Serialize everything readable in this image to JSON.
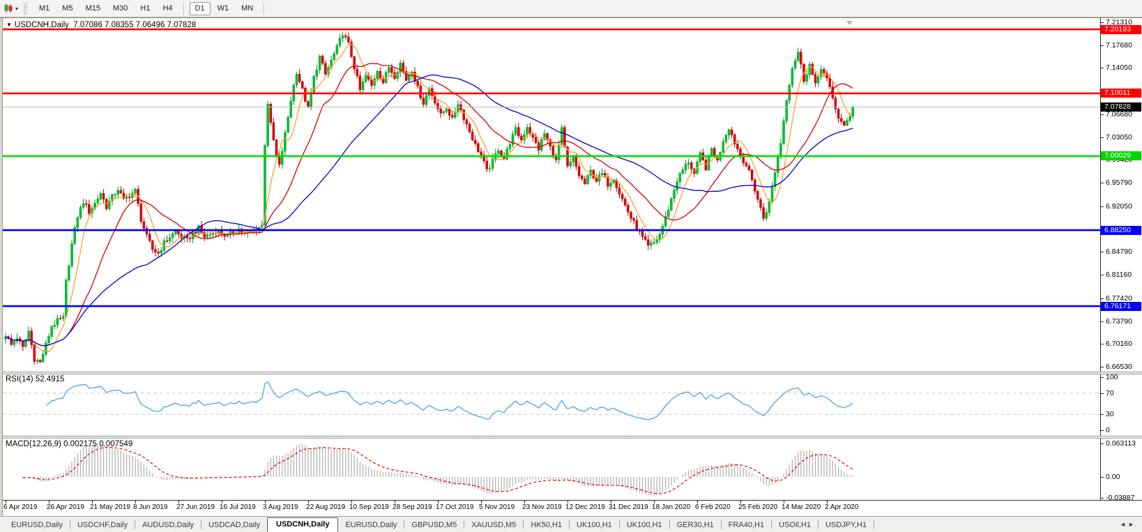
{
  "toolbar": {
    "timeframes": [
      "M1",
      "M5",
      "M15",
      "M30",
      "H1",
      "H4",
      "D1",
      "W1",
      "MN"
    ],
    "active_timeframe": "D1",
    "dropdown_icon": "▾"
  },
  "chart_header": {
    "collapse_icon": "▼",
    "symbol": "USDCNH,Daily",
    "ohlc": "7.07086 7.08355 7.06496 7.07828"
  },
  "price_axis": {
    "ticks": [
      "7.21310",
      "7.17680",
      "7.14050",
      "7.06680",
      "7.03050",
      "6.99420",
      "6.95790",
      "6.92050",
      "6.84790",
      "6.81160",
      "6.77420",
      "6.73790",
      "6.70160",
      "6.66530"
    ],
    "tags": [
      {
        "value": "7.20193",
        "bg": "#ff0000",
        "fg": "#ffffff"
      },
      {
        "value": "7.10011",
        "bg": "#ff0000",
        "fg": "#ffffff"
      },
      {
        "value": "7.07828",
        "bg": "#000000",
        "fg": "#ffffff"
      },
      {
        "value": "7.00029",
        "bg": "#00d500",
        "fg": "#ffffff"
      },
      {
        "value": "6.88250",
        "bg": "#0000ff",
        "fg": "#ffffff"
      },
      {
        "value": "6.76171",
        "bg": "#0000ff",
        "fg": "#ffffff"
      }
    ]
  },
  "rsi": {
    "label": "RSI(14) 52.4915",
    "period": 14,
    "value": "52.4915",
    "ticks": [
      "100",
      "70",
      "30",
      "0"
    ],
    "levels": [
      70,
      30
    ],
    "range": [
      0,
      100
    ],
    "line_color": "#3e9fdf"
  },
  "macd": {
    "label": "MACD(12,26,9) 0.002175 0.007549",
    "fast": 12,
    "slow": 26,
    "signal": 9,
    "values": "0.002175 0.007549",
    "ticks": [
      "0.063113",
      "0.00",
      "-0.03887"
    ],
    "scale_max": 0.063113,
    "scale_min": -0.03887,
    "histogram_color": "#b4b4b4",
    "signal_color": "#e00000"
  },
  "date_axis": {
    "labels": [
      "6 Apr 2019",
      "26 Apr 2019",
      "21 May 2019",
      "8 Jun 2019",
      "27 Jun 2019",
      "16 Jul 2019",
      "3 Aug 2019",
      "22 Aug 2019",
      "10 Sep 2019",
      "28 Sep 2019",
      "17 Oct 2019",
      "5 Nov 2019",
      "23 Nov 2019",
      "12 Dec 2019",
      "31 Dec 2019",
      "18 Jan 2020",
      "6 Feb 2020",
      "25 Feb 2020",
      "14 Mar 2020",
      "2 Apr 2020"
    ],
    "bars_per_label": 15
  },
  "tab_bar": {
    "left_arrow": "◄",
    "right_arrow": "►",
    "tabs": [
      {
        "label": "EURUSD,Daily",
        "active": false
      },
      {
        "label": "USDCHF,Daily",
        "active": false
      },
      {
        "label": "AUDUSD,Daily",
        "active": false
      },
      {
        "label": "USDCAD,Daily",
        "active": false
      },
      {
        "label": "USDCNH,Daily",
        "active": true
      },
      {
        "label": "EURUSD,Daily",
        "active": false
      },
      {
        "label": "GBPUSD,M5",
        "active": false
      },
      {
        "label": "XAUUSD,M5",
        "active": false
      },
      {
        "label": "HK50,H1",
        "active": false
      },
      {
        "label": "UK100,H1",
        "active": false
      },
      {
        "label": "UK100,H1",
        "active": false
      },
      {
        "label": "GER30,H1",
        "active": false
      },
      {
        "label": "FRA40,H1",
        "active": false
      },
      {
        "label": "USOil,H1",
        "active": false
      },
      {
        "label": "USDJPY,H1",
        "active": false
      }
    ]
  },
  "chart_data": {
    "type": "candlestick",
    "symbol": "USDCNH",
    "timeframe": "Daily",
    "open": "7.07086",
    "high": "7.08355",
    "low": "7.06496",
    "close": "7.07828",
    "y_axis": {
      "max": 7.2131,
      "min": 6.6653
    },
    "bar_count": 295,
    "noise": 0.009,
    "close_waypoints": [
      [
        0,
        6.716
      ],
      [
        2,
        6.7
      ],
      [
        4,
        6.712
      ],
      [
        6,
        6.695
      ],
      [
        8,
        6.722
      ],
      [
        10,
        6.678
      ],
      [
        12,
        6.672
      ],
      [
        14,
        6.7
      ],
      [
        16,
        6.73
      ],
      [
        18,
        6.738
      ],
      [
        20,
        6.742
      ],
      [
        21,
        6.8
      ],
      [
        23,
        6.86
      ],
      [
        25,
        6.905
      ],
      [
        27,
        6.928
      ],
      [
        29,
        6.912
      ],
      [
        31,
        6.925
      ],
      [
        33,
        6.942
      ],
      [
        35,
        6.92
      ],
      [
        37,
        6.935
      ],
      [
        39,
        6.948
      ],
      [
        41,
        6.93
      ],
      [
        43,
        6.938
      ],
      [
        45,
        6.945
      ],
      [
        47,
        6.9
      ],
      [
        49,
        6.872
      ],
      [
        51,
        6.852
      ],
      [
        53,
        6.846
      ],
      [
        55,
        6.862
      ],
      [
        57,
        6.872
      ],
      [
        59,
        6.88
      ],
      [
        61,
        6.872
      ],
      [
        63,
        6.866
      ],
      [
        65,
        6.878
      ],
      [
        67,
        6.885
      ],
      [
        69,
        6.872
      ],
      [
        71,
        6.876
      ],
      [
        73,
        6.882
      ],
      [
        75,
        6.878
      ],
      [
        77,
        6.872
      ],
      [
        79,
        6.88
      ],
      [
        81,
        6.884
      ],
      [
        83,
        6.876
      ],
      [
        85,
        6.88
      ],
      [
        87,
        6.884
      ],
      [
        89,
        6.89
      ],
      [
        90,
        7.02
      ],
      [
        91,
        7.085
      ],
      [
        92,
        7.05
      ],
      [
        94,
        7.0
      ],
      [
        95,
        6.984
      ],
      [
        97,
        7.035
      ],
      [
        99,
        7.09
      ],
      [
        101,
        7.135
      ],
      [
        103,
        7.105
      ],
      [
        105,
        7.075
      ],
      [
        107,
        7.125
      ],
      [
        109,
        7.158
      ],
      [
        111,
        7.13
      ],
      [
        113,
        7.152
      ],
      [
        115,
        7.172
      ],
      [
        117,
        7.196
      ],
      [
        119,
        7.178
      ],
      [
        121,
        7.142
      ],
      [
        123,
        7.105
      ],
      [
        125,
        7.128
      ],
      [
        127,
        7.112
      ],
      [
        129,
        7.138
      ],
      [
        131,
        7.118
      ],
      [
        133,
        7.142
      ],
      [
        135,
        7.128
      ],
      [
        137,
        7.148
      ],
      [
        139,
        7.122
      ],
      [
        141,
        7.138
      ],
      [
        143,
        7.108
      ],
      [
        145,
        7.085
      ],
      [
        147,
        7.108
      ],
      [
        149,
        7.088
      ],
      [
        151,
        7.065
      ],
      [
        153,
        7.078
      ],
      [
        155,
        7.058
      ],
      [
        157,
        7.085
      ],
      [
        159,
        7.062
      ],
      [
        161,
        7.04
      ],
      [
        163,
        7.018
      ],
      [
        165,
        7.002
      ],
      [
        167,
        6.976
      ],
      [
        169,
        6.992
      ],
      [
        171,
        7.012
      ],
      [
        173,
        6.996
      ],
      [
        175,
        7.022
      ],
      [
        177,
        7.042
      ],
      [
        179,
        7.026
      ],
      [
        181,
        7.048
      ],
      [
        183,
        7.028
      ],
      [
        185,
        7.012
      ],
      [
        187,
        7.036
      ],
      [
        189,
        7.014
      ],
      [
        191,
        6.992
      ],
      [
        193,
        7.042
      ],
      [
        195,
        6.982
      ],
      [
        197,
        6.996
      ],
      [
        199,
        6.97
      ],
      [
        201,
        6.956
      ],
      [
        203,
        6.976
      ],
      [
        205,
        6.962
      ],
      [
        207,
        6.972
      ],
      [
        209,
        6.956
      ],
      [
        211,
        6.966
      ],
      [
        213,
        6.942
      ],
      [
        215,
        6.922
      ],
      [
        217,
        6.902
      ],
      [
        219,
        6.886
      ],
      [
        221,
        6.87
      ],
      [
        223,
        6.856
      ],
      [
        225,
        6.862
      ],
      [
        227,
        6.876
      ],
      [
        229,
        6.902
      ],
      [
        231,
        6.932
      ],
      [
        233,
        6.962
      ],
      [
        235,
        6.978
      ],
      [
        237,
        6.992
      ],
      [
        239,
        6.972
      ],
      [
        241,
        7.002
      ],
      [
        243,
        6.982
      ],
      [
        245,
        7.012
      ],
      [
        247,
        6.992
      ],
      [
        249,
        7.026
      ],
      [
        251,
        7.046
      ],
      [
        253,
        7.022
      ],
      [
        255,
        7.002
      ],
      [
        257,
        6.986
      ],
      [
        259,
        6.962
      ],
      [
        261,
        6.932
      ],
      [
        263,
        6.902
      ],
      [
        265,
        6.926
      ],
      [
        267,
        6.976
      ],
      [
        269,
        7.022
      ],
      [
        271,
        7.092
      ],
      [
        273,
        7.142
      ],
      [
        275,
        7.166
      ],
      [
        277,
        7.122
      ],
      [
        279,
        7.146
      ],
      [
        281,
        7.112
      ],
      [
        283,
        7.142
      ],
      [
        285,
        7.122
      ],
      [
        287,
        7.092
      ],
      [
        289,
        7.062
      ],
      [
        291,
        7.046
      ],
      [
        293,
        7.066
      ],
      [
        294,
        7.078
      ]
    ],
    "moving_averages": [
      {
        "name": "fast",
        "period": 7,
        "color": "#ffa02f"
      },
      {
        "name": "medium",
        "period": 21,
        "color": "#d40000"
      },
      {
        "name": "slow",
        "period": 50,
        "color": "#0000c8"
      }
    ],
    "h_lines": [
      {
        "price": 7.20193,
        "color": "#ff0000",
        "width": 2.6
      },
      {
        "price": 7.10011,
        "color": "#ff0000",
        "width": 2.6
      },
      {
        "price": 7.00029,
        "color": "#00e000",
        "width": 2.6
      },
      {
        "price": 6.8825,
        "color": "#0000ff",
        "width": 2.6
      },
      {
        "price": 6.76171,
        "color": "#0000ff",
        "width": 2.6
      }
    ],
    "current_price_line": {
      "price": 7.07828,
      "color": "#b8b8b8",
      "width": 1
    },
    "style": {
      "up": "#00c432",
      "up_border": "#009420",
      "down": "#e00000",
      "down_border": "#b00000",
      "level_dash_color": "#c8c8c8"
    }
  }
}
